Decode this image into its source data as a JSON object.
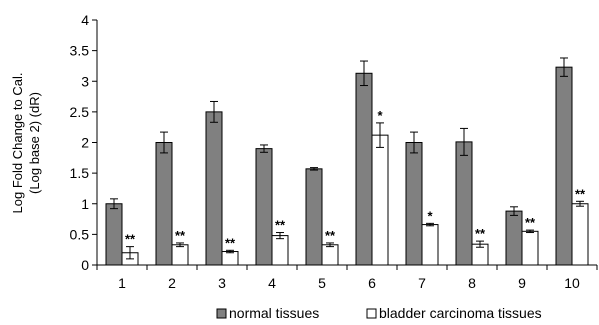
{
  "chart_data": {
    "type": "bar",
    "title": "",
    "xlabel": "",
    "ylabel": [
      "Log Fold Change to Cal.",
      "(Log base 2) (dR)"
    ],
    "ylim": [
      0,
      4
    ],
    "yticks": [
      "0",
      "0.5",
      "1",
      "1.5",
      "2",
      "2.5",
      "3",
      "3.5",
      "4"
    ],
    "categories": [
      "1",
      "2",
      "3",
      "4",
      "5",
      "6",
      "7",
      "8",
      "9",
      "10"
    ],
    "series": [
      {
        "name": "normal tissues",
        "color": "#808080",
        "values": [
          1.0,
          2.0,
          2.5,
          1.9,
          1.57,
          3.13,
          2.0,
          2.01,
          0.88,
          3.23
        ],
        "errors": [
          0.08,
          0.17,
          0.17,
          0.06,
          0.02,
          0.2,
          0.17,
          0.22,
          0.07,
          0.15
        ]
      },
      {
        "name": "bladder carcinoma tissues",
        "color": "#ffffff",
        "values": [
          0.2,
          0.33,
          0.22,
          0.48,
          0.33,
          2.12,
          0.66,
          0.34,
          0.55,
          1.0
        ],
        "errors": [
          0.1,
          0.03,
          0.02,
          0.05,
          0.03,
          0.2,
          0.02,
          0.05,
          0.02,
          0.04
        ]
      }
    ],
    "significance": [
      "**",
      "**",
      "**",
      "**",
      "**",
      "*",
      "*",
      "**",
      "**",
      "**"
    ],
    "legend": [
      "normal tissues",
      "bladder carcinoma tissues"
    ],
    "legend_position": "bottom",
    "grid": false
  }
}
